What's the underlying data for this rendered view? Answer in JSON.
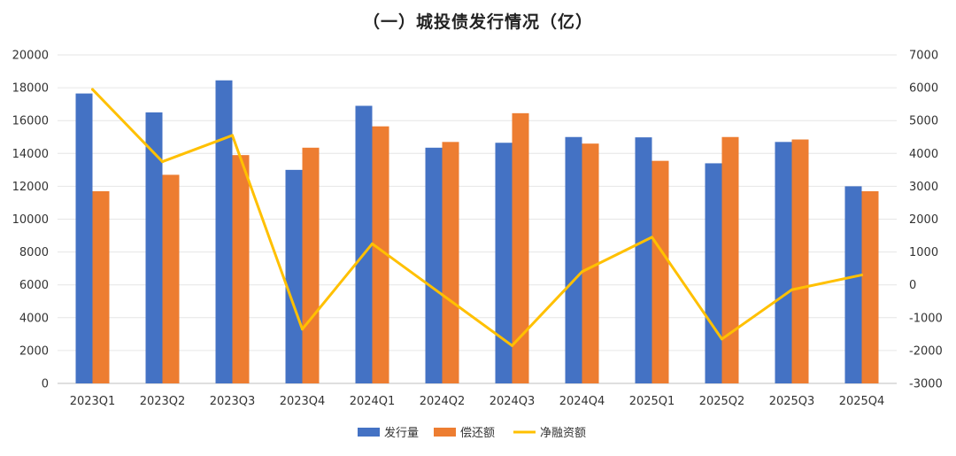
{
  "chart_data": {
    "type": "bar",
    "title": "（一）城投债发行情况（亿）",
    "categories": [
      "2023Q1",
      "2023Q2",
      "2023Q3",
      "2023Q4",
      "2024Q1",
      "2024Q2",
      "2024Q3",
      "2024Q4",
      "2025Q1",
      "2025Q2",
      "2025Q3",
      "2025Q4"
    ],
    "series": [
      {
        "name": "发行量",
        "type": "bar",
        "axis": "left",
        "color": "#4472C4",
        "values": [
          17650,
          16500,
          18450,
          13000,
          16900,
          14350,
          14650,
          15000,
          14980,
          13400,
          14700,
          12000
        ]
      },
      {
        "name": "偿还额",
        "type": "bar",
        "axis": "left",
        "color": "#ED7D31",
        "values": [
          11700,
          12700,
          13900,
          14350,
          15650,
          14700,
          16450,
          14600,
          13550,
          15000,
          14850,
          11700
        ]
      },
      {
        "name": "净融资额",
        "type": "line",
        "axis": "right",
        "color": "#FFC000",
        "values": [
          5950,
          3750,
          4550,
          -1350,
          1250,
          -300,
          -1850,
          400,
          1450,
          -1650,
          -150,
          300
        ]
      }
    ],
    "y_left": {
      "ylim": [
        0,
        20000
      ],
      "ticks": [
        "0",
        "2000",
        "4000",
        "6000",
        "8000",
        "10000",
        "12000",
        "14000",
        "16000",
        "18000",
        "20000"
      ]
    },
    "y_right": {
      "ylim": [
        -3000,
        7000
      ],
      "ticks": [
        "-3000",
        "-2000",
        "-1000",
        "0",
        "1000",
        "2000",
        "3000",
        "4000",
        "5000",
        "6000",
        "7000"
      ]
    },
    "grid": true,
    "legend_position": "bottom"
  }
}
